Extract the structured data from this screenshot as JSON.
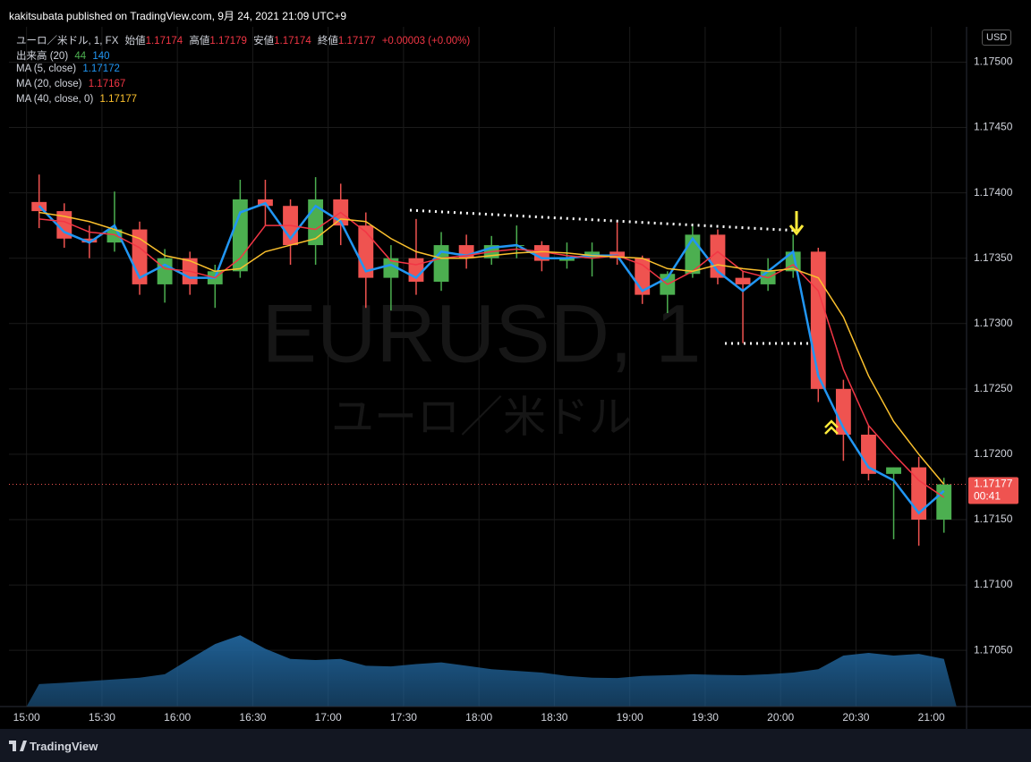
{
  "header": {
    "publisher": "kakitsubata published on TradingView.com, 9月 24, 2021 21:09 UTC+9"
  },
  "legend": {
    "symbol": "ユーロ／米ドル, 1, FX",
    "open_label": "始値",
    "open": 1.17174,
    "high_label": "高値",
    "high": 1.17179,
    "low_label": "安値",
    "low": 1.17174,
    "close_label": "終値",
    "close": 1.17177,
    "change": "+0.00003 (+0.00%)",
    "volume": 44
  },
  "watermark": {
    "symbol": "EURUSD, 1",
    "name": "ユーロ／米ドル"
  },
  "currency": "USD",
  "countdown": "00:41",
  "footer": "TradingView",
  "chart_data": {
    "type": "candlestick",
    "up_color": "#4caf50",
    "down_color": "#ef5350",
    "x": [
      "15:00",
      "15:10",
      "15:20",
      "15:30",
      "15:40",
      "15:50",
      "16:00",
      "16:10",
      "16:20",
      "16:30",
      "16:40",
      "16:50",
      "17:00",
      "17:10",
      "17:20",
      "17:30",
      "17:40",
      "17:50",
      "18:00",
      "18:10",
      "18:20",
      "18:30",
      "18:40",
      "18:50",
      "19:00",
      "19:10",
      "19:20",
      "19:30",
      "19:40",
      "19:50",
      "20:00",
      "20:10",
      "20:20",
      "20:30",
      "20:40",
      "20:50",
      "21:00"
    ],
    "open": [
      1.17393,
      1.17386,
      1.17365,
      1.17362,
      1.17372,
      1.1733,
      1.1735,
      1.1733,
      1.1734,
      1.17395,
      1.1739,
      1.1736,
      1.17395,
      1.17375,
      1.17335,
      1.1735,
      1.17332,
      1.1736,
      1.1735,
      1.1736,
      1.1736,
      1.17348,
      1.1735,
      1.17355,
      1.1735,
      1.17322,
      1.17338,
      1.17368,
      1.17335,
      1.1733,
      1.1734,
      1.17355,
      1.1725,
      1.17215,
      1.17185,
      1.1719,
      1.1715
    ],
    "high": [
      1.17414,
      1.17392,
      1.17375,
      1.17401,
      1.17378,
      1.17357,
      1.17355,
      1.17345,
      1.1741,
      1.1741,
      1.17395,
      1.17412,
      1.17407,
      1.17385,
      1.1736,
      1.1738,
      1.1737,
      1.17368,
      1.17367,
      1.17375,
      1.17363,
      1.17362,
      1.17362,
      1.17378,
      1.17352,
      1.1734,
      1.17375,
      1.17372,
      1.1734,
      1.1735,
      1.17368,
      1.17358,
      1.17257,
      1.17222,
      1.1719,
      1.17198,
      1.17182
    ],
    "low": [
      1.17373,
      1.17358,
      1.1735,
      1.17355,
      1.17322,
      1.17316,
      1.17322,
      1.17312,
      1.17335,
      1.17375,
      1.17345,
      1.17345,
      1.1736,
      1.17312,
      1.1731,
      1.17322,
      1.17325,
      1.17342,
      1.17345,
      1.1735,
      1.1734,
      1.17342,
      1.17336,
      1.17345,
      1.17315,
      1.17308,
      1.17335,
      1.1733,
      1.17285,
      1.17325,
      1.17335,
      1.1724,
      1.17195,
      1.1718,
      1.17135,
      1.1713,
      1.1714
    ],
    "close": [
      1.17386,
      1.17365,
      1.17362,
      1.17372,
      1.1733,
      1.1735,
      1.1733,
      1.1734,
      1.17395,
      1.1739,
      1.1736,
      1.17395,
      1.17375,
      1.17335,
      1.1735,
      1.17332,
      1.1736,
      1.1735,
      1.1736,
      1.1736,
      1.17348,
      1.1735,
      1.17355,
      1.1735,
      1.17322,
      1.17338,
      1.17368,
      1.17335,
      1.1733,
      1.1734,
      1.17355,
      1.1725,
      1.17215,
      1.17185,
      1.1719,
      1.1715,
      1.17177
    ],
    "series": [
      {
        "name": "MA (5, close)",
        "color": "#2196f3",
        "values": [
          1.1739,
          1.1737,
          1.17362,
          1.17375,
          1.17335,
          1.17345,
          1.17335,
          1.17335,
          1.17385,
          1.17392,
          1.17365,
          1.1739,
          1.17378,
          1.1734,
          1.17345,
          1.17335,
          1.17355,
          1.17352,
          1.17358,
          1.1736,
          1.1735,
          1.1735,
          1.17352,
          1.17352,
          1.17325,
          1.17335,
          1.17365,
          1.1734,
          1.17325,
          1.1734,
          1.17355,
          1.1726,
          1.1722,
          1.1719,
          1.1718,
          1.17155,
          1.17172
        ]
      },
      {
        "name": "MA (20, close)",
        "color": "#f23645",
        "values": [
          1.1738,
          1.17378,
          1.1737,
          1.17368,
          1.17358,
          1.17342,
          1.1734,
          1.17335,
          1.1735,
          1.17375,
          1.17375,
          1.17372,
          1.17385,
          1.1737,
          1.17348,
          1.17345,
          1.1735,
          1.17352,
          1.17355,
          1.17357,
          1.17355,
          1.17352,
          1.1735,
          1.17352,
          1.17345,
          1.1733,
          1.1734,
          1.17355,
          1.1734,
          1.17335,
          1.17345,
          1.17325,
          1.17265,
          1.17222,
          1.172,
          1.1718,
          1.17167
        ]
      },
      {
        "name": "MA (40, close, 0)",
        "color": "#fbc02d",
        "values": [
          1.17385,
          1.17382,
          1.17378,
          1.17372,
          1.17365,
          1.17352,
          1.17348,
          1.1734,
          1.17342,
          1.17355,
          1.1736,
          1.17365,
          1.1738,
          1.17378,
          1.17365,
          1.17355,
          1.1735,
          1.1735,
          1.17352,
          1.17354,
          1.17355,
          1.17354,
          1.17352,
          1.17351,
          1.1735,
          1.17342,
          1.1734,
          1.17345,
          1.17342,
          1.1734,
          1.17342,
          1.17335,
          1.17305,
          1.1726,
          1.17225,
          1.172,
          1.17177
        ]
      }
    ],
    "volume_ma": {
      "name": "出来高 (20)",
      "color": "#1f5f93",
      "values": [
        66,
        70,
        75,
        80,
        85,
        95,
        140,
        184,
        210,
        170,
        140,
        137,
        140,
        120,
        118,
        125,
        130,
        120,
        110,
        105,
        100,
        90,
        85,
        84,
        90,
        92,
        95,
        93,
        92,
        95,
        100,
        110,
        150,
        158,
        150,
        155,
        140
      ]
    },
    "volume_ylim": [
      0,
      2000
    ],
    "ylim": [
      1.17007,
      1.17527
    ],
    "yticks": [
      {
        "value": 1.175,
        "label": "1.17500"
      },
      {
        "value": 1.1745,
        "label": "1.17450"
      },
      {
        "value": 1.174,
        "label": "1.17400"
      },
      {
        "value": 1.1735,
        "label": "1.17350"
      },
      {
        "value": 1.173,
        "label": "1.17300"
      },
      {
        "value": 1.1725,
        "label": "1.17250"
      },
      {
        "value": 1.172,
        "label": "1.17200"
      },
      {
        "value": 1.1715,
        "label": "1.17150"
      },
      {
        "value": 1.171,
        "label": "1.17100"
      },
      {
        "value": 1.1705,
        "label": "1.17050"
      }
    ],
    "xlim": [
      "14:53",
      "21:14"
    ],
    "xticks": [
      "15:00",
      "15:30",
      "16:00",
      "16:30",
      "17:00",
      "17:30",
      "18:00",
      "18:30",
      "19:00",
      "19:30",
      "20:00",
      "20:30",
      "21:00"
    ],
    "grid": true
  }
}
